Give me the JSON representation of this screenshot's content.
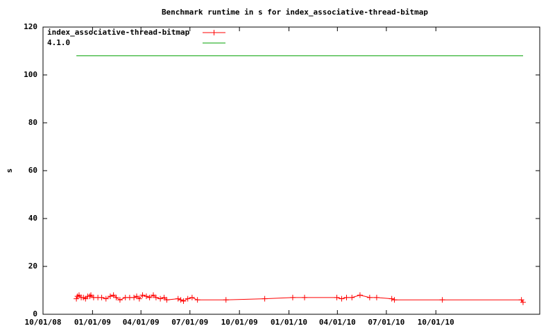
{
  "chart_data": {
    "type": "line",
    "title": "Benchmark runtime in s for index_associative-thread-bitmap",
    "y_label": "s",
    "xlim": [
      "2008-10-01",
      "2011-04-12"
    ],
    "xticks": [
      {
        "value": "2008-10-01",
        "label": "10/01/08"
      },
      {
        "value": "2009-01-01",
        "label": "01/01/09"
      },
      {
        "value": "2009-04-01",
        "label": "04/01/09"
      },
      {
        "value": "2009-07-01",
        "label": "07/01/09"
      },
      {
        "value": "2009-10-01",
        "label": "10/01/09"
      },
      {
        "value": "2010-01-01",
        "label": "01/01/10"
      },
      {
        "value": "2010-04-01",
        "label": "04/01/10"
      },
      {
        "value": "2010-07-01",
        "label": "07/01/10"
      },
      {
        "value": "2010-10-01",
        "label": "10/01/10"
      }
    ],
    "ylim": [
      0,
      120
    ],
    "yticks": [
      0,
      20,
      40,
      60,
      80,
      100,
      120
    ],
    "legend": "top-left",
    "series": [
      {
        "name": "index_associative-thread-bitmap",
        "color": "#ff0000",
        "markers": true,
        "x": [
          "2008-12-02",
          "2008-12-04",
          "2008-12-07",
          "2008-12-11",
          "2008-12-15",
          "2008-12-19",
          "2008-12-23",
          "2008-12-27",
          "2008-12-29",
          "2009-01-03",
          "2009-01-11",
          "2009-01-18",
          "2009-01-26",
          "2009-02-03",
          "2009-02-09",
          "2009-02-14",
          "2009-02-21",
          "2009-03-03",
          "2009-03-11",
          "2009-03-19",
          "2009-03-24",
          "2009-03-29",
          "2009-04-04",
          "2009-04-11",
          "2009-04-17",
          "2009-04-24",
          "2009-04-29",
          "2009-05-07",
          "2009-05-14",
          "2009-05-19",
          "2009-06-09",
          "2009-06-14",
          "2009-06-19",
          "2009-06-27",
          "2009-07-05",
          "2009-07-15",
          "2009-09-06",
          "2009-11-17",
          "2010-01-08",
          "2010-01-30",
          "2010-03-31",
          "2010-04-09",
          "2010-04-18",
          "2010-04-28",
          "2010-05-13",
          "2010-05-31",
          "2010-06-13",
          "2010-07-11",
          "2010-07-16",
          "2010-10-13",
          "2011-03-09",
          "2011-03-12"
        ],
        "values": [
          6.5,
          7.5,
          8,
          7,
          7,
          6.5,
          7.5,
          7.5,
          8,
          7,
          7,
          7,
          6.5,
          7.5,
          8,
          7,
          6,
          7,
          7,
          7,
          7.5,
          6.5,
          8,
          7.5,
          7,
          8,
          7,
          6.5,
          7,
          6,
          6.5,
          6,
          5.5,
          6.5,
          7,
          6,
          6,
          6.5,
          7,
          7,
          7,
          6.5,
          7,
          7,
          8,
          7,
          7,
          6.5,
          6,
          6,
          6,
          5
        ]
      },
      {
        "name": "4.1.0",
        "color": "#00a000",
        "markers": false,
        "x": [
          "2008-12-02",
          "2011-03-12"
        ],
        "values": [
          108,
          108
        ]
      }
    ]
  }
}
